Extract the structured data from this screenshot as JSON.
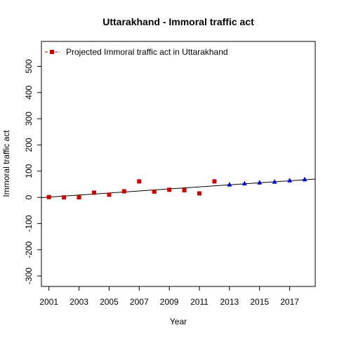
{
  "chart_data": {
    "type": "scatter",
    "title": "Uttarakhand  -  Immoral traffic act",
    "xlabel": "Year",
    "ylabel": "Immoral traffic act",
    "xlim": [
      2000.5,
      2018.7
    ],
    "ylim": [
      -340,
      595
    ],
    "x_ticks": [
      2001,
      2003,
      2005,
      2007,
      2009,
      2011,
      2013,
      2015,
      2017
    ],
    "y_ticks": [
      -300,
      -200,
      -100,
      0,
      100,
      200,
      300,
      400,
      500
    ],
    "legend": {
      "position": "top-left",
      "entries": [
        {
          "label": "Projected  Immoral traffic act  in  Uttarakhand",
          "color": "#cc0000",
          "marker": "square",
          "line": "dashed"
        }
      ]
    },
    "series": [
      {
        "name": "Projected  Immoral traffic act  in  Uttarakhand",
        "marker": "square",
        "color": "#cc0000",
        "x": [
          2001,
          2002,
          2003,
          2004,
          2005,
          2006,
          2007,
          2008,
          2009,
          2010,
          2011,
          2012
        ],
        "y": [
          1,
          0,
          0,
          18,
          10,
          23,
          61,
          22,
          29,
          27,
          15,
          61
        ]
      },
      {
        "marker": "triangle",
        "color": "#0000cc",
        "x": [
          2013,
          2014,
          2015,
          2016,
          2017,
          2018
        ],
        "y": [
          48,
          52,
          56,
          59,
          64,
          68
        ]
      }
    ],
    "trend_line": {
      "x": [
        2000.5,
        2018.7
      ],
      "y": [
        -1,
        70
      ],
      "color": "#000000"
    },
    "grid": false
  }
}
